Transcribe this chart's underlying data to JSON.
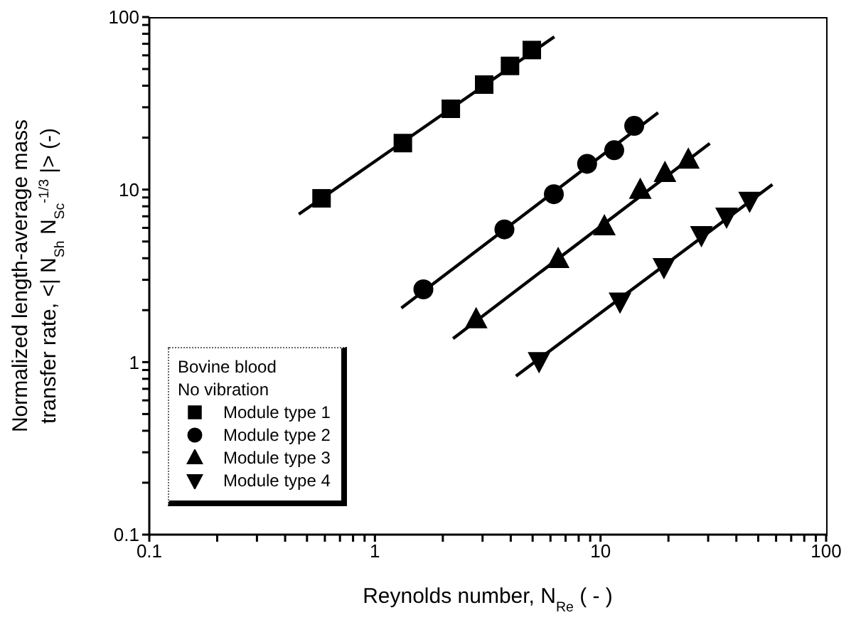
{
  "chart_data": {
    "type": "scatter",
    "xlabel": "Reynolds number, N$_{Re}$ ( - )",
    "ylabel": "Normalized length-average mass\ntransfer rate, <| N$_{Sh}$ N$_{Sc}$$^{-1/3}$ |> (-)",
    "legend_title": "Bovine blood\nNo vibration",
    "log": "xy",
    "legend": "bottom left",
    "xlim": [
      0.1,
      100
    ],
    "ylim": [
      0.1,
      100
    ],
    "xticks": [
      0.1,
      {
        "value": 0.2,
        "label": null
      },
      {
        "value": 0.3,
        "label": null
      },
      {
        "value": 0.4,
        "label": null
      },
      {
        "value": 0.5,
        "label": null
      },
      {
        "value": 0.6,
        "label": null
      },
      {
        "value": 0.7,
        "label": null
      },
      {
        "value": 0.8,
        "label": null
      },
      {
        "value": 0.9,
        "label": null
      },
      1,
      {
        "value": 2,
        "label": null
      },
      {
        "value": 3,
        "label": null
      },
      {
        "value": 4,
        "label": null
      },
      {
        "value": 5,
        "label": null
      },
      {
        "value": 6,
        "label": null
      },
      {
        "value": 7,
        "label": null
      },
      {
        "value": 8,
        "label": null
      },
      {
        "value": 9,
        "label": null
      },
      10,
      {
        "value": 20,
        "label": null
      },
      {
        "value": 30,
        "label": null
      },
      {
        "value": 40,
        "label": null
      },
      {
        "value": 50,
        "label": null
      },
      {
        "value": 60,
        "label": null
      },
      {
        "value": 70,
        "label": null
      },
      {
        "value": 80,
        "label": null
      },
      {
        "value": 90,
        "label": null
      },
      100
    ],
    "yticks": [
      0.1,
      {
        "value": 0.2,
        "label": null
      },
      {
        "value": 0.3,
        "label": null
      },
      {
        "value": 0.4,
        "label": null
      },
      {
        "value": 0.5,
        "label": null
      },
      {
        "value": 0.6,
        "label": null
      },
      {
        "value": 0.7,
        "label": null
      },
      {
        "value": 0.8,
        "label": null
      },
      {
        "value": 0.9,
        "label": null
      },
      1,
      {
        "value": 2,
        "label": null
      },
      {
        "value": 3,
        "label": null
      },
      {
        "value": 4,
        "label": null
      },
      {
        "value": 5,
        "label": null
      },
      {
        "value": 6,
        "label": null
      },
      {
        "value": 7,
        "label": null
      },
      {
        "value": 8,
        "label": null
      },
      {
        "value": 9,
        "label": null
      },
      10,
      {
        "value": 20,
        "label": null
      },
      {
        "value": 30,
        "label": null
      },
      {
        "value": 40,
        "label": null
      },
      {
        "value": 50,
        "label": null
      },
      {
        "value": 60,
        "label": null
      },
      {
        "value": 70,
        "label": null
      },
      {
        "value": 80,
        "label": null
      },
      {
        "value": 90,
        "label": null
      },
      100
    ],
    "series": [
      {
        "name": "Module type 1",
        "marker": "square",
        "color": "#000000",
        "x": [
          0.58,
          1.33,
          2.17,
          3.05,
          3.97,
          4.96
        ],
        "values": [
          8.9,
          18.6,
          29.4,
          40.6,
          52.1,
          64.4
        ]
      },
      {
        "name": "Module type 2",
        "marker": "circle",
        "color": "#000000",
        "x": [
          1.64,
          3.75,
          6.21,
          8.72,
          11.5,
          14.1
        ],
        "values": [
          2.64,
          5.88,
          9.4,
          14.1,
          16.9,
          23.4
        ]
      },
      {
        "name": "Module type 3",
        "marker": "triangle",
        "color": "#000000",
        "x": [
          2.81,
          6.49,
          10.4,
          15.0,
          19.3,
          24.5
        ],
        "values": [
          1.76,
          3.93,
          6.09,
          9.9,
          12.4,
          14.8
        ]
      },
      {
        "name": "Module type 4",
        "marker": "triangle-down",
        "color": "#000000",
        "x": [
          5.34,
          12.2,
          19.1,
          28.0,
          36.2,
          45.8
        ],
        "values": [
          1.02,
          2.26,
          3.58,
          5.48,
          7.02,
          8.67
        ]
      },
      {
        "type": "line",
        "color": "#000000",
        "x": [
          0.46,
          6.24
        ],
        "values": [
          7.2,
          76.9
        ]
      },
      {
        "type": "line",
        "color": "#000000",
        "x": [
          1.31,
          18.0
        ],
        "values": [
          2.06,
          27.9
        ]
      },
      {
        "type": "line",
        "color": "#000000",
        "x": [
          2.22,
          30.5
        ],
        "values": [
          1.37,
          18.5
        ]
      },
      {
        "type": "line",
        "color": "#000000",
        "x": [
          4.22,
          57.8
        ],
        "values": [
          0.83,
          10.7
        ]
      }
    ]
  }
}
